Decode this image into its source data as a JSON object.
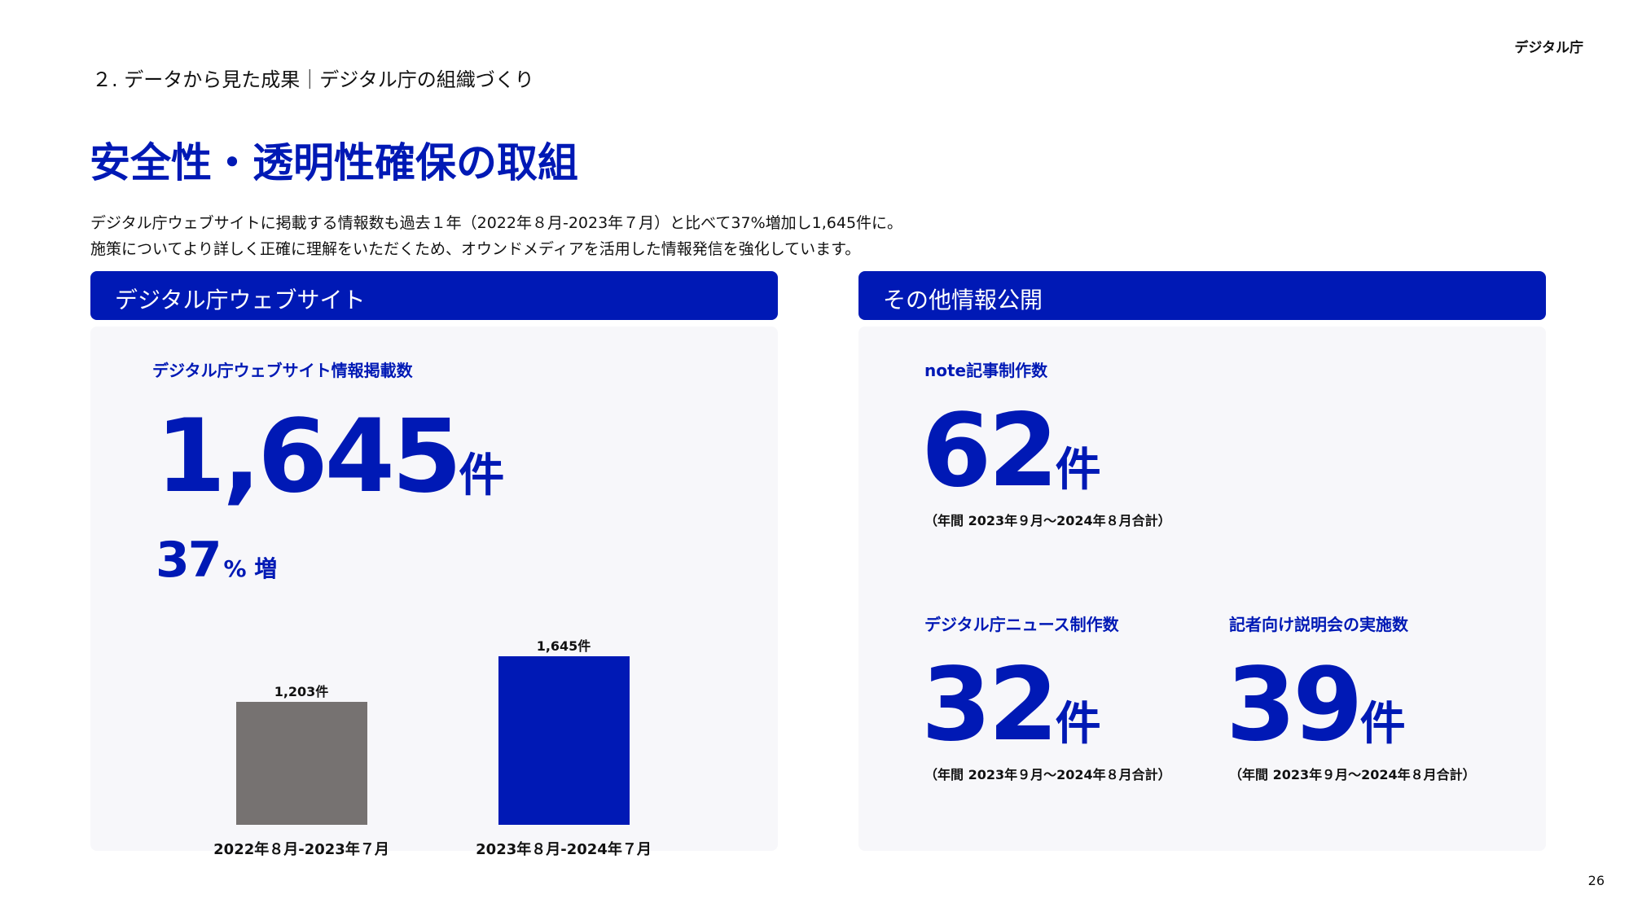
{
  "header": {
    "logo": "デジタル庁",
    "breadcrumb": "２. データから見た成果｜デジタル庁の組織づくり",
    "title": "安全性・透明性確保の取組",
    "lead": [
      "デジタル庁ウェブサイトに掲載する情報数も過去１年（2022年８月-2023年７月）と比べて37%増加し1,645件に。",
      "施策についてより詳しく正確に理解をいただくため、オウンドメディアを活用した情報発信を強化しています。"
    ]
  },
  "left": {
    "header": "デジタル庁ウェブサイト",
    "label": "デジタル庁ウェブサイト情報掲載数",
    "value": "1,645",
    "unit": "件",
    "growth": "37",
    "growth_unit": "% 増"
  },
  "chart_data": {
    "type": "bar",
    "categories": [
      "2022年８月-2023年７月",
      "2023年８月-2024年７月"
    ],
    "values": [
      1203,
      1645
    ],
    "data_labels": [
      "1,203件",
      "1,645件"
    ],
    "colors": [
      "#767271",
      "#0019b5"
    ],
    "ylim": [
      0,
      1645
    ]
  },
  "right": {
    "header": "その他情報公開",
    "items": [
      {
        "label": "note記事制作数",
        "value": "62",
        "unit": "件",
        "note": "（年間 2023年９月〜2024年８月合計）"
      },
      {
        "label": "デジタル庁ニュース制作数",
        "value": "32",
        "unit": "件",
        "note": "（年間 2023年９月〜2024年８月合計）"
      },
      {
        "label": "記者向け説明会の実施数",
        "value": "39",
        "unit": "件",
        "note": "（年間 2023年９月〜2024年８月合計）"
      }
    ]
  },
  "page_number": "26"
}
